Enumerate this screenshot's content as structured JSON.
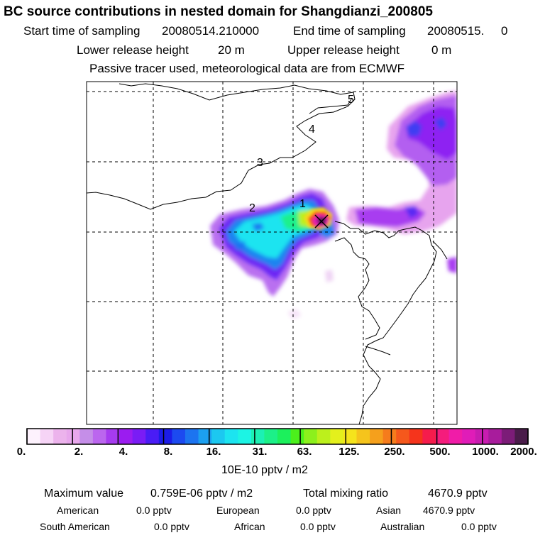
{
  "header": {
    "title": "BC  source contributions in nested domain for Shangdianzi_200805",
    "start_label": "Start time of sampling",
    "start_value": "20080514.210000",
    "end_label": "End time of sampling",
    "end_value": "20080515.     0",
    "lower_label": "Lower release height",
    "lower_value": "20 m",
    "upper_label": "Upper release height",
    "upper_value": "0 m",
    "tracer_note": "Passive tracer used, meteorological data are from ECMWF"
  },
  "map": {
    "trajectory_labels": [
      "1",
      "2",
      "3",
      "4",
      "5"
    ],
    "receptor_marker": "x-marker-icon"
  },
  "colorbar": {
    "tick_labels": [
      "0.",
      "2.",
      "4.",
      "8.",
      "16.",
      "31.",
      "63.",
      "125.",
      "250.",
      "500.",
      "1000.",
      "2000."
    ],
    "units": "10E-10 pptv / m2",
    "colors": [
      "#fdf2fd",
      "#f6d4f6",
      "#ecb3ec",
      "#e8a7ec",
      "#c58ee8",
      "#bb66ee",
      "#a63bef",
      "#9b1cf0",
      "#7a1cf5",
      "#4a1cf5",
      "#1c1ce8",
      "#1c4af0",
      "#1c74f0",
      "#1ca0f0",
      "#1cc8f0",
      "#1ce4f0",
      "#1cf4e4",
      "#1cf0b4",
      "#1cf088",
      "#1cf05c",
      "#4cf01c",
      "#8cf01c",
      "#bcf01c",
      "#e4f01c",
      "#f5e41c",
      "#f5c41c",
      "#f5a01c",
      "#f57c1c",
      "#f5581c",
      "#f5341c",
      "#f51c4c",
      "#f51c7c",
      "#f01ca8",
      "#e01cb8",
      "#c81cb0",
      "#a81c9c",
      "#7c1c78",
      "#4a1c4a"
    ]
  },
  "stats": {
    "max_label": "Maximum value",
    "max_value": "0.759E-06 pptv / m2",
    "total_label": "Total mixing ratio",
    "total_value": "4670.9 pptv",
    "regions": [
      {
        "name": "American",
        "value": "0.0 pptv"
      },
      {
        "name": "European",
        "value": "0.0 pptv"
      },
      {
        "name": "Asian",
        "value": "4670.9 pptv"
      },
      {
        "name": "South American",
        "value": "0.0 pptv"
      },
      {
        "name": "African",
        "value": "0.0 pptv"
      },
      {
        "name": "Australian",
        "value": "0.0 pptv"
      }
    ]
  }
}
